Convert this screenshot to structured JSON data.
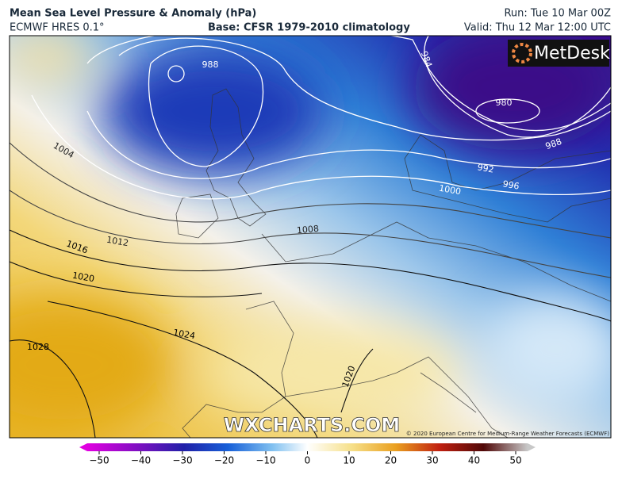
{
  "header": {
    "title": "Mean Sea Level Pressure & Anomaly (hPa)",
    "model": "ECMWF HRES 0.1°",
    "base": "Base: CFSR 1979-2010 climatology",
    "run": "Run: Tue 10 Mar 00Z",
    "valid": "Valid: Thu 12 Mar 12:00 UTC"
  },
  "logo": "MetDesk",
  "watermark": "WXCHARTS.COM",
  "copyright": "© 2020 European Centre for Medium-Range Weather Forecasts (ECMWF)",
  "contour_labels": [
    988,
    984,
    980,
    988,
    992,
    996,
    1000,
    1004,
    1008,
    1012,
    1016,
    1020,
    1024,
    1028,
    1020
  ],
  "colorbar": {
    "ticks": [
      {
        "value": -50,
        "label": "−50"
      },
      {
        "value": -40,
        "label": "−40"
      },
      {
        "value": -30,
        "label": "−30"
      },
      {
        "value": -20,
        "label": "−20"
      },
      {
        "value": -10,
        "label": "−10"
      },
      0,
      10,
      20,
      30,
      40,
      50
    ]
  }
}
